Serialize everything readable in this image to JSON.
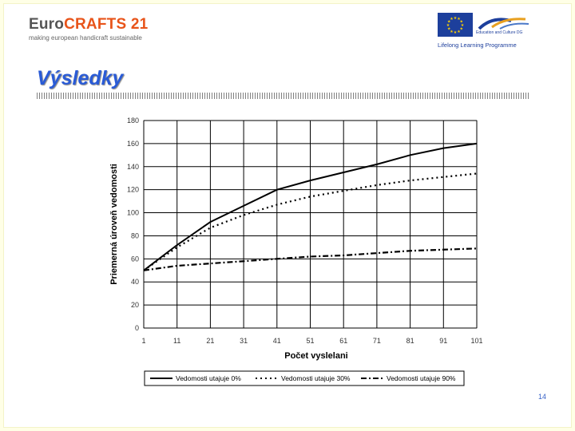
{
  "header": {
    "logo_left": {
      "euro": "Euro",
      "crafts": "CRAFTS 21",
      "tagline": "making european handicraft sustainable"
    },
    "logo_right": {
      "brand": "Education and Culture DG",
      "programme": "Lifelong Learning Programme"
    }
  },
  "slide": {
    "title": "Výsledky",
    "page_number": "14"
  },
  "colors": {
    "background": "#ffffe6",
    "title": "#2a5bd6",
    "crafts": "#e8541a",
    "eu_blue": "#1d3f9c",
    "eu_star": "#ffd200"
  },
  "chart_data": {
    "type": "line",
    "title": "",
    "xlabel": "Počet vyslelani",
    "ylabel": "Priemerná úroveň vedomosti",
    "x": [
      1,
      11,
      21,
      31,
      41,
      51,
      61,
      71,
      81,
      91,
      101
    ],
    "xticks": [
      "1",
      "11",
      "21",
      "31",
      "41",
      "51",
      "61",
      "71",
      "81",
      "91",
      "101"
    ],
    "yticks": [
      "0",
      "20",
      "40",
      "60",
      "80",
      "100",
      "120",
      "140",
      "160",
      "180"
    ],
    "xlim": [
      1,
      101
    ],
    "ylim": [
      0,
      180
    ],
    "grid": true,
    "legend": "bottom",
    "series": [
      {
        "name": "Vedomosti utajuje 0%",
        "dash": "solid",
        "values": [
          50,
          72,
          92,
          106,
          120,
          128,
          135,
          142,
          150,
          156,
          160
        ]
      },
      {
        "name": "Vedomosti utajuje 30%",
        "dash": "dotted",
        "values": [
          50,
          70,
          87,
          98,
          107,
          114,
          119,
          124,
          128,
          131,
          134
        ]
      },
      {
        "name": "Vedomosti utajuje 90%",
        "dash": "dashdot",
        "values": [
          50,
          54,
          56,
          58,
          60,
          62,
          63,
          65,
          67,
          68,
          69
        ]
      }
    ]
  }
}
